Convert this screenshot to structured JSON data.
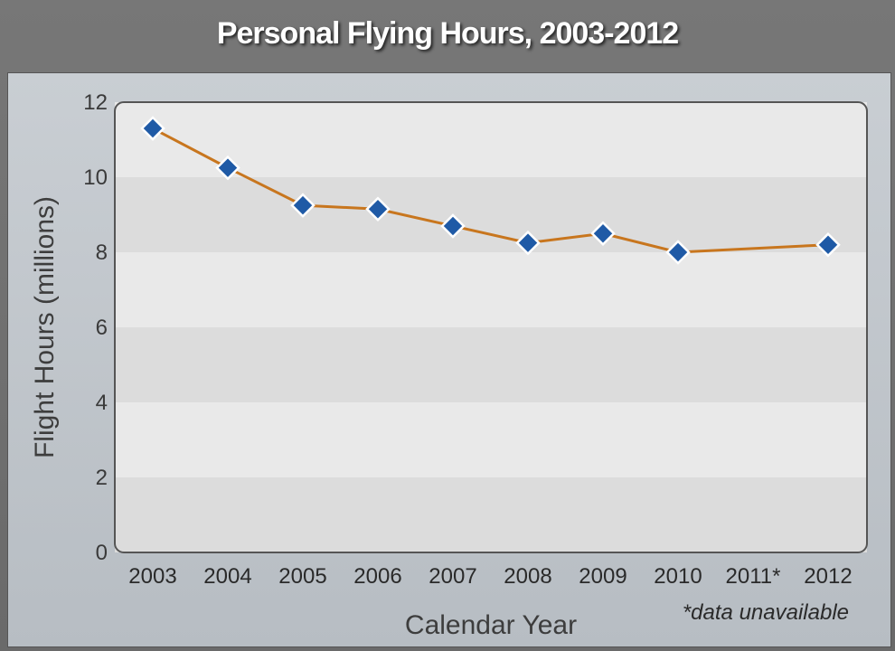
{
  "title": "Personal Flying Hours, 2003-2012",
  "footnote": "*data unavailable",
  "chart_data": {
    "type": "line",
    "title": "Personal Flying Hours, 2003-2012",
    "xlabel": "Calendar Year",
    "ylabel": "Flight Hours (millions)",
    "categories": [
      "2003",
      "2004",
      "2005",
      "2006",
      "2007",
      "2008",
      "2009",
      "2010",
      "2011*",
      "2012"
    ],
    "values": [
      11.3,
      10.25,
      9.25,
      9.15,
      8.7,
      8.25,
      8.5,
      8.0,
      null,
      8.2
    ],
    "ylim": [
      0,
      12
    ],
    "yticks": [
      0,
      2,
      4,
      6,
      8,
      10,
      12
    ],
    "line_color": "#c8761e",
    "marker_color": "#1f5aa6",
    "grid": false,
    "banded_background": true,
    "legend": "none"
  }
}
